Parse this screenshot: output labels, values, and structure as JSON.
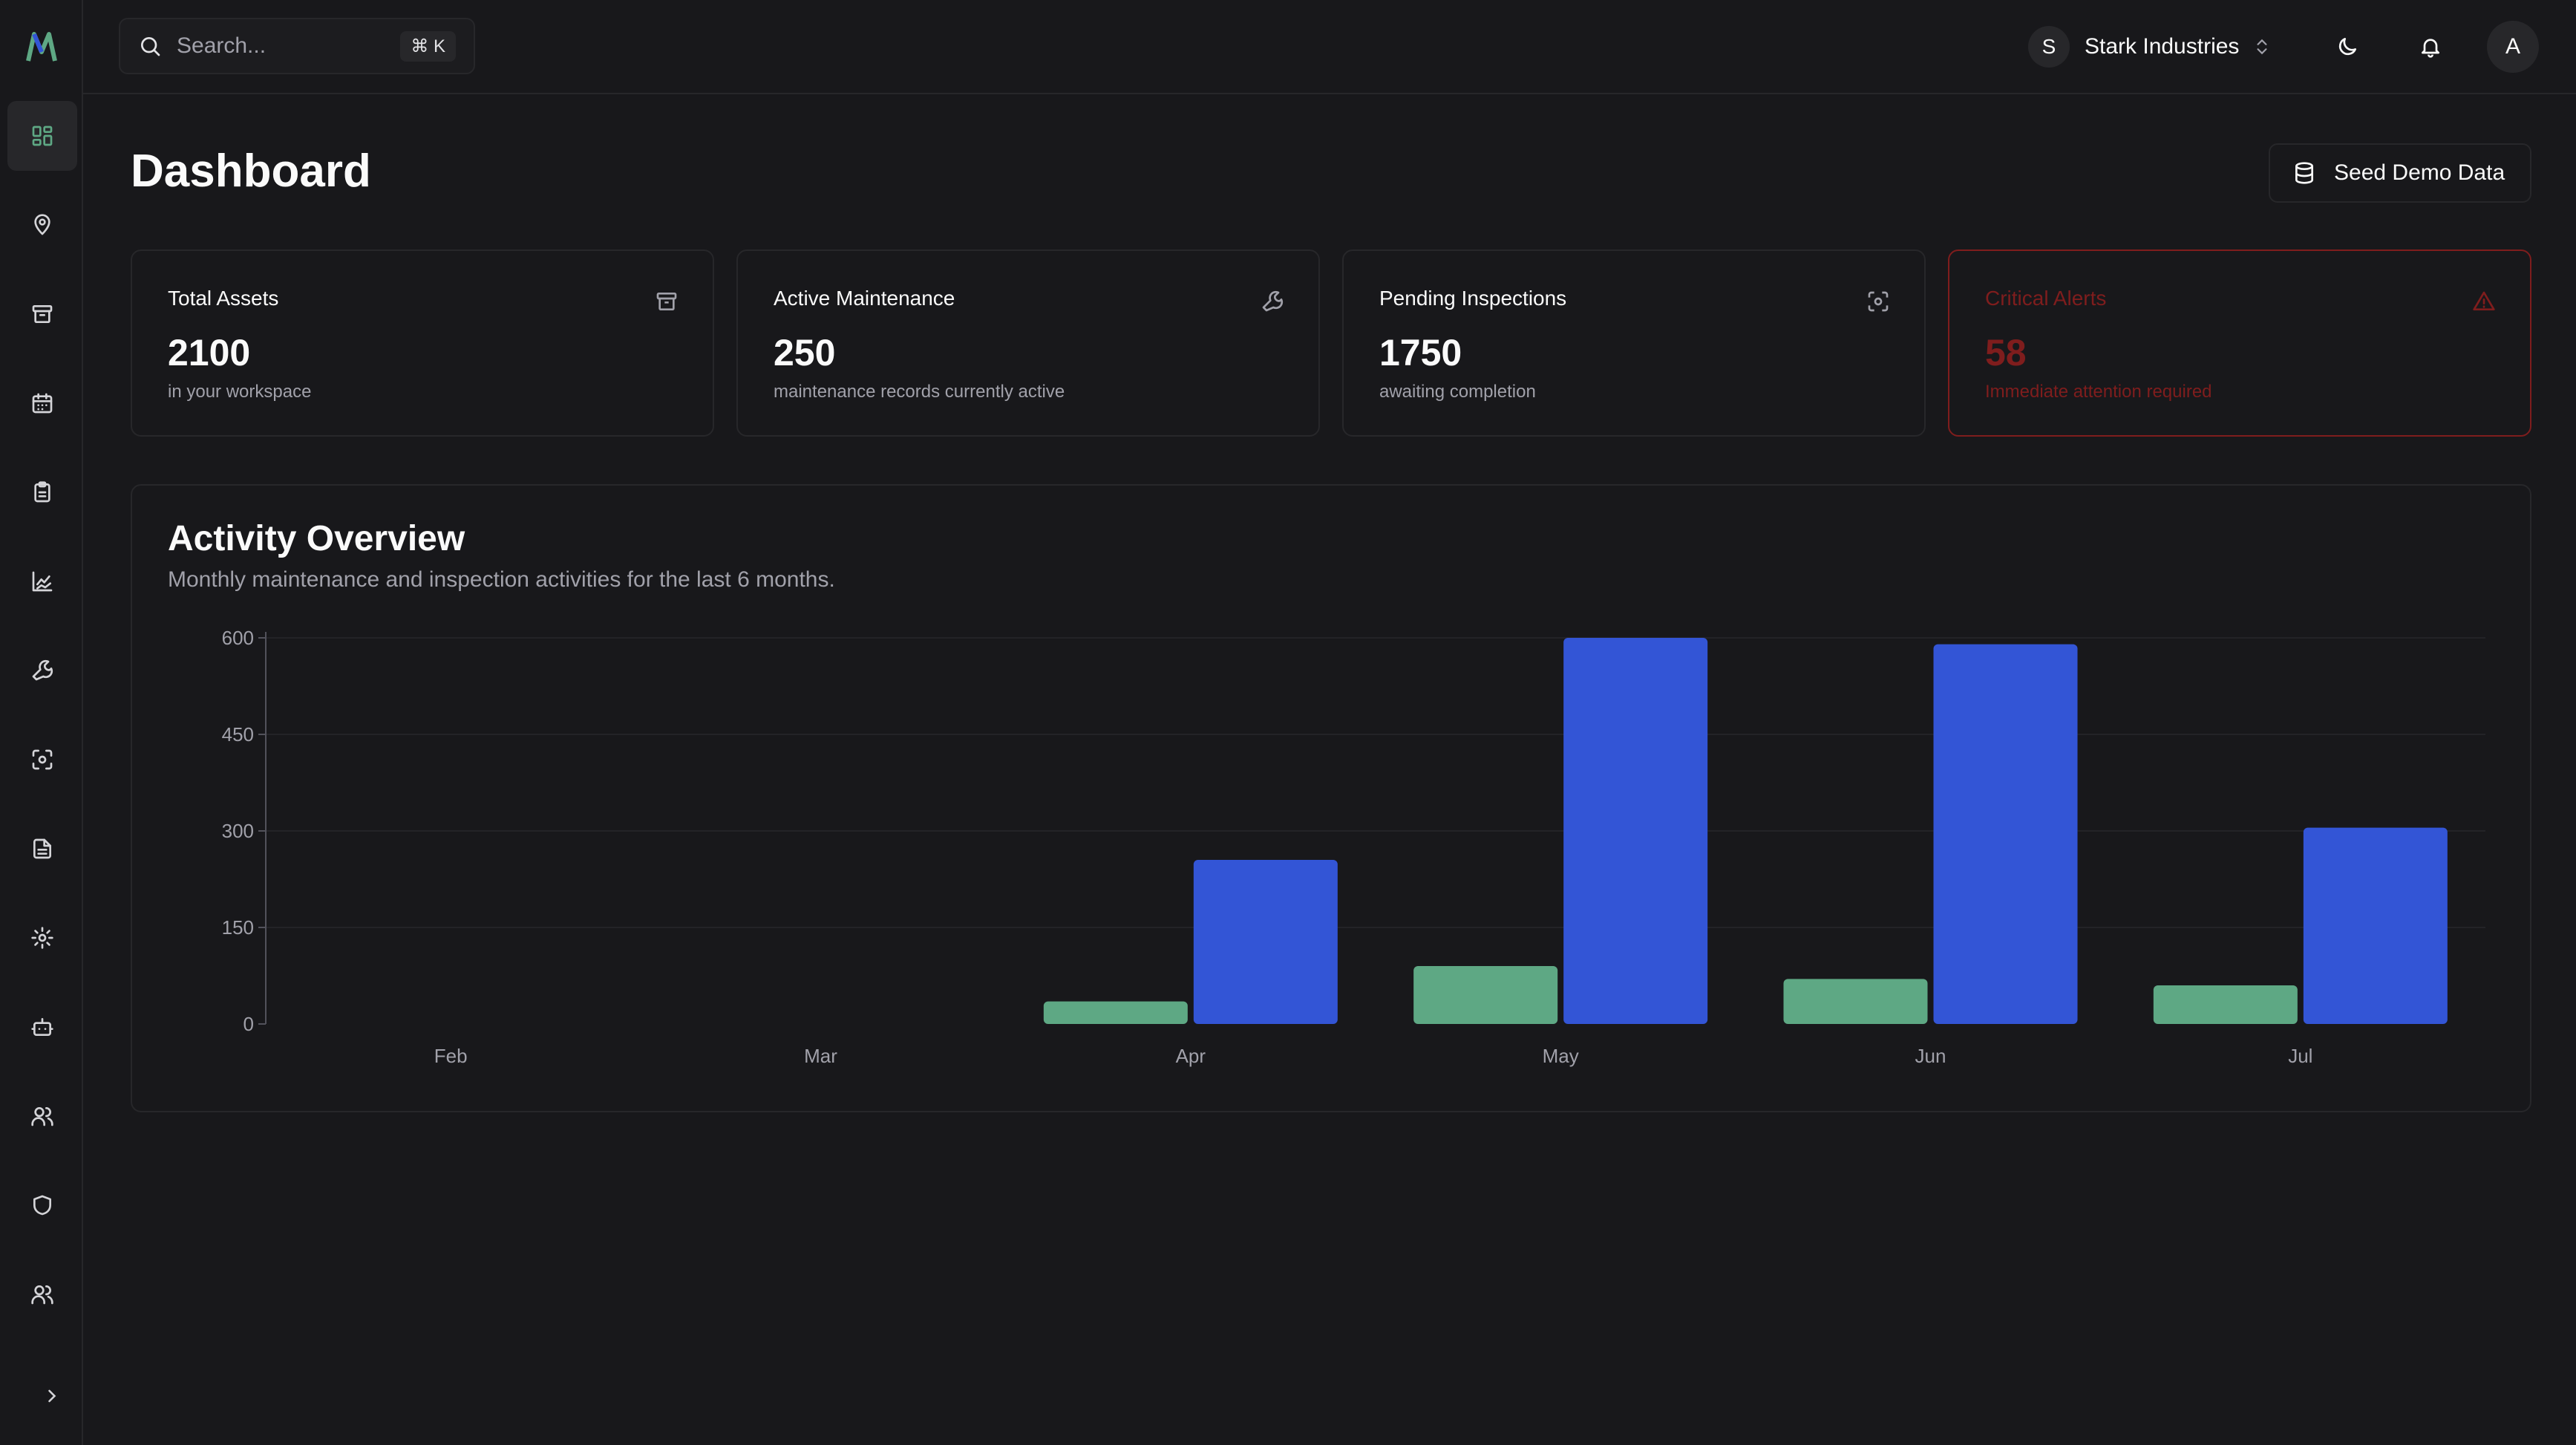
{
  "search": {
    "placeholder": "Search...",
    "shortcut": "⌘ K"
  },
  "header": {
    "org_initial": "S",
    "org_name": "Stark Industries",
    "avatar_initial": "A"
  },
  "sidebar": {
    "items": [
      {
        "name": "dashboard",
        "icon": "layout-grid-icon",
        "active": true
      },
      {
        "name": "locations",
        "icon": "map-pin-icon"
      },
      {
        "name": "assets",
        "icon": "archive-icon"
      },
      {
        "name": "schedule",
        "icon": "calendar-icon"
      },
      {
        "name": "checklists",
        "icon": "clipboard-icon"
      },
      {
        "name": "reports",
        "icon": "chart-icon"
      },
      {
        "name": "maintenance",
        "icon": "wrench-icon"
      },
      {
        "name": "inspections",
        "icon": "scan-icon"
      },
      {
        "name": "documents",
        "icon": "file-icon"
      },
      {
        "name": "settings",
        "icon": "gear-icon"
      },
      {
        "name": "automation",
        "icon": "bot-icon"
      },
      {
        "name": "users",
        "icon": "users-icon"
      },
      {
        "name": "security",
        "icon": "shield-icon"
      },
      {
        "name": "teams",
        "icon": "users-icon"
      }
    ]
  },
  "main": {
    "title": "Dashboard",
    "seed_button": "Seed Demo Data",
    "cards": [
      {
        "label": "Total Assets",
        "value": "2100",
        "sub": "in your workspace",
        "icon": "archive-icon"
      },
      {
        "label": "Active Maintenance",
        "value": "250",
        "sub": "maintenance records currently active",
        "icon": "wrench-icon"
      },
      {
        "label": "Pending Inspections",
        "value": "1750",
        "sub": "awaiting completion",
        "icon": "scan-icon"
      },
      {
        "label": "Critical Alerts",
        "value": "58",
        "sub": "Immediate attention required",
        "icon": "alert-triangle-icon"
      }
    ],
    "activity": {
      "title": "Activity Overview",
      "subtitle": "Monthly maintenance and inspection activities for the last 6 months."
    }
  },
  "colors": {
    "maintenance": "#5ea884",
    "inspection": "#3355d6",
    "critical": "#7f1d1d"
  },
  "chart_data": {
    "type": "bar",
    "categories": [
      "Feb",
      "Mar",
      "Apr",
      "May",
      "Jun",
      "Jul"
    ],
    "series": [
      {
        "values": [
          0,
          0,
          35,
          90,
          70,
          60
        ]
      },
      {
        "values": [
          0,
          0,
          255,
          600,
          590,
          305
        ]
      }
    ],
    "yticks": [
      0,
      150,
      300,
      450,
      600
    ],
    "ylim": [
      0,
      600
    ],
    "title": "",
    "xlabel": "",
    "ylabel": "",
    "grid": true
  }
}
